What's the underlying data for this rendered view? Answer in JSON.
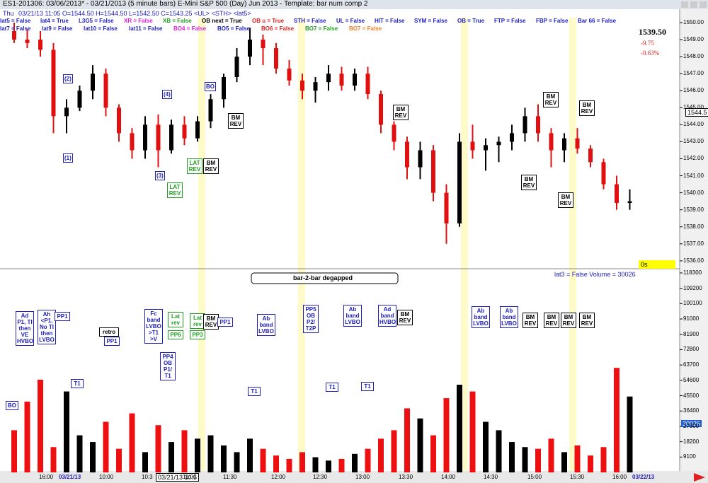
{
  "window": {
    "title": "ES1-201306:  03/06/2013* - 03/21/2013  (5 minute bars)   E-Mini S&P 500 (Day) Jun 2013  -  Template: bar num comp 2"
  },
  "header": {
    "day": "Thu",
    "quote": "03/21/13 11:05  O=1544.50  H=1544.50  L=1542.50  C=1543.25  <UL>  <STH>  <lat5>"
  },
  "flags_row1": [
    {
      "text": "lat5 = False",
      "color": "#2020c0"
    },
    {
      "text": "lat4 = True",
      "color": "#2020c0"
    },
    {
      "text": "L3G5 = False",
      "color": "#2020c0"
    },
    {
      "text": "XR = False",
      "color": "#e020e0"
    },
    {
      "text": "XB = False",
      "color": "#20a020"
    },
    {
      "text": "OB next = True",
      "color": "#000000"
    },
    {
      "text": "OB u = True",
      "color": "#e02020"
    },
    {
      "text": "STH = False",
      "color": "#2020c0"
    },
    {
      "text": "UL = False",
      "color": "#2020c0"
    },
    {
      "text": "HIT = False",
      "color": "#2020c0"
    },
    {
      "text": "SYM = False",
      "color": "#2020c0"
    },
    {
      "text": "OB = True",
      "color": "#2020c0"
    },
    {
      "text": "FTP = False",
      "color": "#2020c0"
    },
    {
      "text": "FBP = False",
      "color": "#2020c0"
    },
    {
      "text": "Bar 66 = False",
      "color": "#2020c0"
    }
  ],
  "flags_row2": [
    {
      "text": "lat7 = False",
      "color": "#2020c0"
    },
    {
      "text": "lat9 = False",
      "color": "#2020c0"
    },
    {
      "text": "lat10 = False",
      "color": "#2020c0"
    },
    {
      "text": "lat11 = False",
      "color": "#2020c0"
    },
    {
      "text": "BO4 = False",
      "color": "#e020e0"
    },
    {
      "text": "BO5 = False",
      "color": "#2020c0"
    },
    {
      "text": "BO6 = False",
      "color": "#e02020"
    },
    {
      "text": "BO7 = False",
      "color": "#20a020"
    },
    {
      "text": "BO7 = False",
      "color": "#f08020"
    }
  ],
  "quote_panel": {
    "last": "1539.50",
    "change": "-9.75",
    "percent": "-0.63%",
    "price_marker": "1544.5",
    "volume_marker": "30026",
    "timer": "0s",
    "status": "lat3 = False   Volume = 30026"
  },
  "price_panel": {
    "ylim": [
      1535.62,
      1550.29
    ],
    "yticks": [
      {
        "value": 1550,
        "label": "1550.00"
      },
      {
        "value": 1549,
        "label": "1549.00"
      },
      {
        "value": 1548,
        "label": "1548.00"
      },
      {
        "value": 1547,
        "label": "1547.00"
      },
      {
        "value": 1546,
        "label": "1546.00"
      },
      {
        "value": 1545,
        "label": "1545.00"
      },
      {
        "value": 1544,
        "label": "1544.00"
      },
      {
        "value": 1543,
        "label": "1543.00"
      },
      {
        "value": 1542,
        "label": "1542.00"
      },
      {
        "value": 1541,
        "label": "1541.00"
      },
      {
        "value": 1540,
        "label": "1540.00"
      },
      {
        "value": 1539,
        "label": "1539.00"
      },
      {
        "value": 1538,
        "label": "1538.00"
      },
      {
        "value": 1537,
        "label": "1537.00"
      },
      {
        "value": 1536,
        "label": "1536.00"
      }
    ],
    "candles": [
      [
        1549.5,
        1550,
        1548.8,
        1549
      ],
      [
        1549,
        1549.6,
        1548.5,
        1548.8
      ],
      [
        1549,
        1549.5,
        1548,
        1548.4
      ],
      [
        1548.4,
        1548.8,
        1543.5,
        1544.5
      ],
      [
        1544.5,
        1545.5,
        1543.5,
        1545
      ],
      [
        1545,
        1546.3,
        1544.8,
        1546
      ],
      [
        1546,
        1547.5,
        1545.5,
        1547
      ],
      [
        1547,
        1547.3,
        1544.5,
        1545
      ],
      [
        1545,
        1545.2,
        1543,
        1543.5
      ],
      [
        1543.5,
        1543.8,
        1542,
        1542.5
      ],
      [
        1542.5,
        1544.5,
        1542,
        1544
      ],
      [
        1544,
        1544.6,
        1541.5,
        1542.5
      ],
      [
        1542.5,
        1544.3,
        1542.3,
        1544
      ],
      [
        1544,
        1544.5,
        1542.8,
        1543.2
      ],
      [
        1543.2,
        1544.5,
        1543,
        1544.2
      ],
      [
        1544.2,
        1545.8,
        1543.8,
        1545.5
      ],
      [
        1545.5,
        1547,
        1545,
        1546.8
      ],
      [
        1546.8,
        1548.5,
        1546.5,
        1548
      ],
      [
        1548,
        1549.7,
        1547.5,
        1549
      ],
      [
        1549,
        1549.3,
        1547.5,
        1548.5
      ],
      [
        1548.5,
        1548.8,
        1547,
        1547.3
      ],
      [
        1547.3,
        1547.8,
        1546.3,
        1546.6
      ],
      [
        1546.6,
        1547,
        1545.5,
        1546
      ],
      [
        1546,
        1546.8,
        1545.3,
        1546.5
      ],
      [
        1546.5,
        1547.5,
        1546,
        1547
      ],
      [
        1547,
        1547.4,
        1546,
        1546.3
      ],
      [
        1546.3,
        1547.3,
        1546,
        1547
      ],
      [
        1547,
        1547.4,
        1545.5,
        1545.8
      ],
      [
        1545.8,
        1546,
        1543.5,
        1544
      ],
      [
        1544,
        1544.2,
        1542.5,
        1543
      ],
      [
        1543,
        1543.3,
        1540.8,
        1541.5
      ],
      [
        1541.5,
        1543,
        1540.8,
        1542.5
      ],
      [
        1542.5,
        1542.8,
        1539.5,
        1540
      ],
      [
        1540,
        1540.5,
        1537,
        1538.2
      ],
      [
        1538.2,
        1543.5,
        1538,
        1543
      ],
      [
        1543,
        1544,
        1542,
        1542.5
      ],
      [
        1542.5,
        1543.2,
        1541.3,
        1542.8
      ],
      [
        1542.8,
        1543.3,
        1541.8,
        1543
      ],
      [
        1543,
        1544,
        1542.5,
        1543.5
      ],
      [
        1543.5,
        1545,
        1543,
        1544.5
      ],
      [
        1544.5,
        1545.2,
        1543,
        1543.5
      ],
      [
        1543.5,
        1543.8,
        1541.5,
        1542.5
      ],
      [
        1542.5,
        1543.5,
        1541.8,
        1543.2
      ],
      [
        1543.2,
        1543.8,
        1542.3,
        1542.6
      ],
      [
        1542.6,
        1542.8,
        1541.5,
        1541.8
      ],
      [
        1541.8,
        1542,
        1540.2,
        1540.5
      ],
      [
        1540.5,
        1541,
        1539,
        1539.4
      ],
      [
        1539.4,
        1540.2,
        1539,
        1539.5
      ]
    ],
    "annotations": [
      "BM REV",
      "BM REV",
      "BM REV",
      "BM REV",
      "BM REV",
      "BM REV",
      "BM REV",
      "LAT REV",
      "LAT REV",
      "BO",
      "(2)",
      "(4)",
      "(3)",
      "(1)",
      "bar-2-bar degapped"
    ]
  },
  "volume_panel": {
    "ylim": [
      0,
      120800
    ],
    "yticks": [
      118300,
      109200,
      100100,
      91000,
      81900,
      72800,
      63700,
      54600,
      45500,
      36400,
      27300,
      18200,
      9100
    ],
    "values": [
      25000,
      42000,
      55000,
      15000,
      48000,
      22000,
      18000,
      30000,
      14000,
      35000,
      12000,
      28000,
      18000,
      25000,
      20000,
      22000,
      16000,
      12000,
      20000,
      14000,
      10000,
      8000,
      12000,
      9000,
      7000,
      8000,
      11000,
      14000,
      20000,
      25000,
      38000,
      32000,
      22000,
      44000,
      52000,
      48000,
      30000,
      25000,
      18000,
      15000,
      14000,
      20000,
      12000,
      16000,
      10000,
      15000,
      62000,
      45000
    ],
    "annotations": [
      "Ad P1, TI then VE HVBO",
      "Ah <P1, No TI then LVBO",
      "PP1",
      "retro",
      "PP1",
      "Fc band LVBO >T1 >V",
      "Lat rev",
      "PP6",
      "PP4 OB P1/ T1",
      "Lat rev",
      "PP3",
      "BM REV",
      "PP1",
      "Ab band LVBO",
      "PP5 OB P2/ T2P",
      "Ab band LVBO",
      "Ad band HVBO",
      "BM REV",
      "Ab band LVBO",
      "Ab band LVBO",
      "BM REV",
      "BM REV",
      "BM REV",
      "BM REV",
      "T1",
      "T1",
      "T1",
      "T1",
      "BO"
    ]
  },
  "time_axis": [
    "16:00",
    "03/21/13",
    "10:00",
    "10:3",
    "11:00",
    "11:30",
    "12:00",
    "12:30",
    "13:00",
    "13:30",
    "14:00",
    "14:30",
    "15:00",
    "15:30",
    "16:00",
    "03/22/13"
  ],
  "cursor_time": "03/21/13 10:5"
}
